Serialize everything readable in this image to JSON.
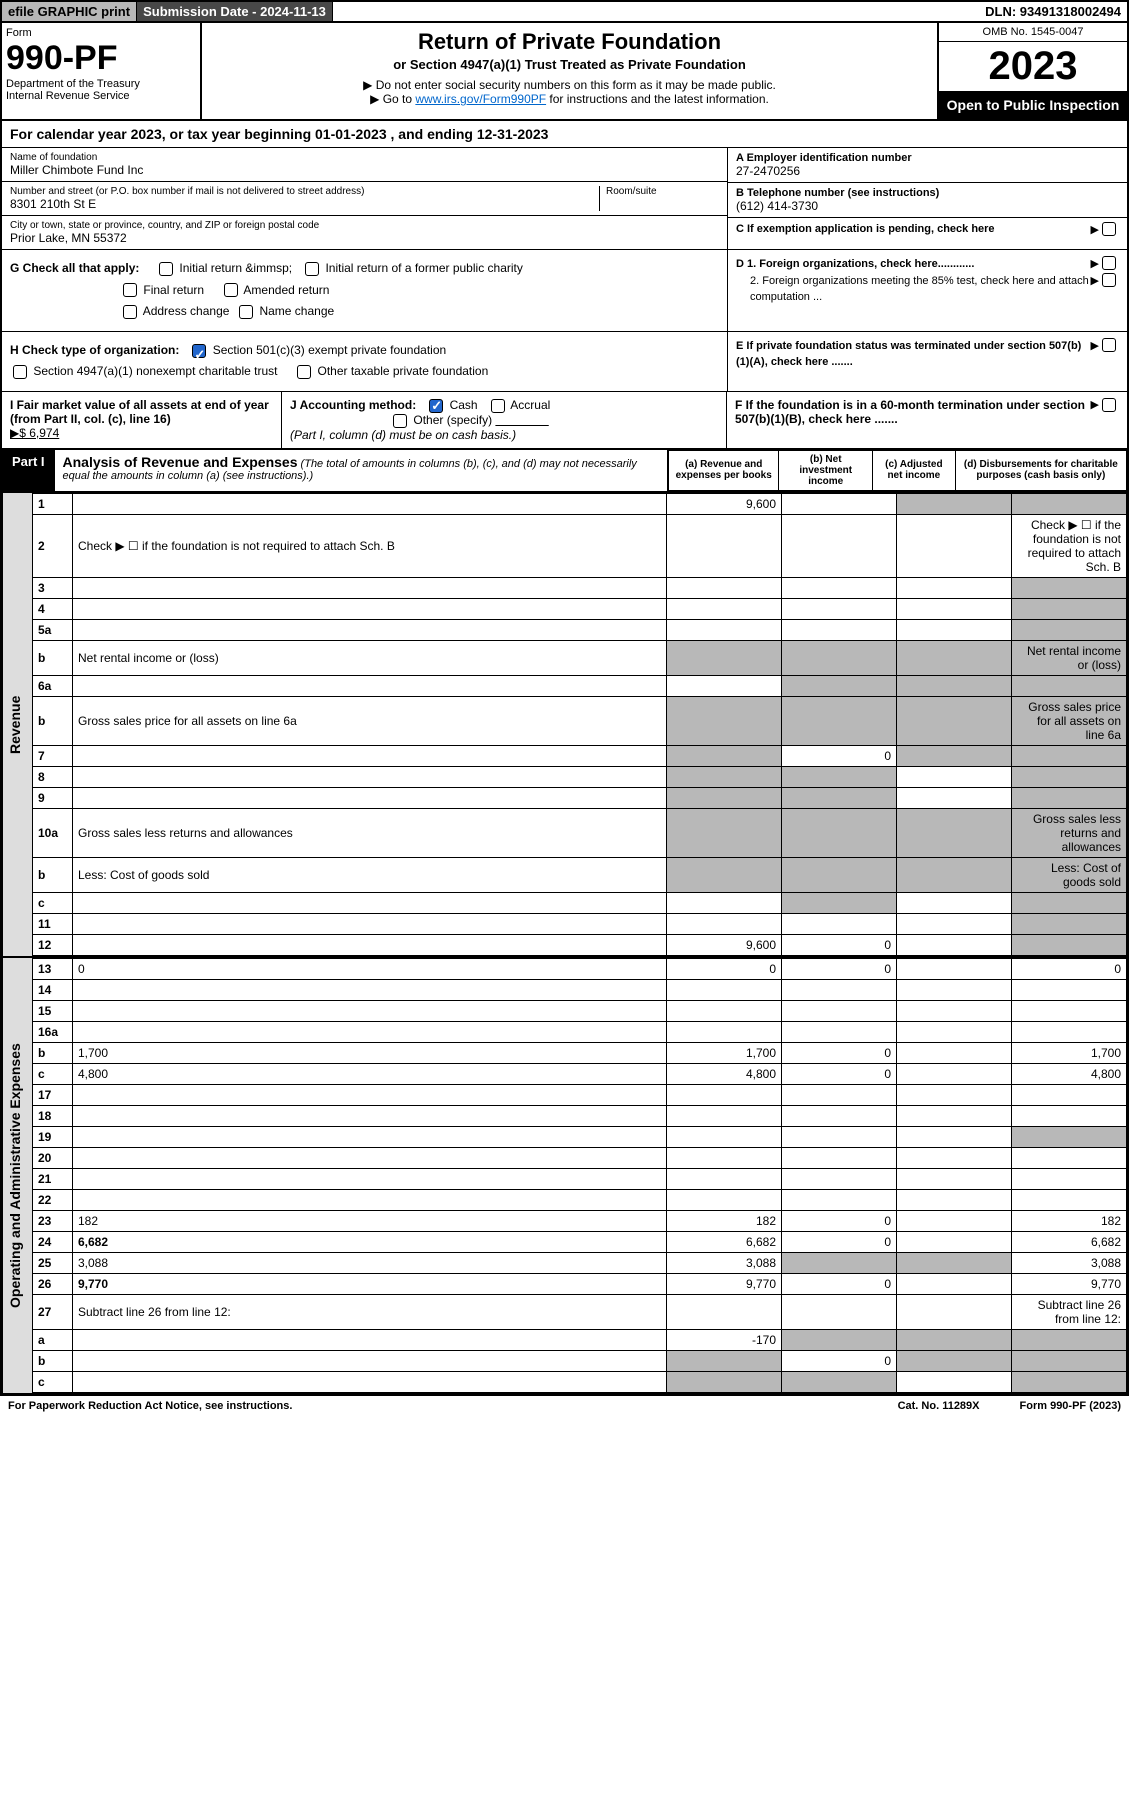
{
  "topbar": {
    "efile": "efile GRAPHIC print",
    "subdate_label": "Submission Date - 2024-11-13",
    "dln": "DLN: 93491318002494"
  },
  "header": {
    "form_word": "Form",
    "form_num": "990-PF",
    "dept": "Department of the Treasury",
    "irs": "Internal Revenue Service",
    "title": "Return of Private Foundation",
    "subtitle": "or Section 4947(a)(1) Trust Treated as Private Foundation",
    "note1": "▶ Do not enter social security numbers on this form as it may be made public.",
    "note2_pre": "▶ Go to ",
    "note2_link": "www.irs.gov/Form990PF",
    "note2_post": " for instructions and the latest information.",
    "omb": "OMB No. 1545-0047",
    "year": "2023",
    "open": "Open to Public Inspection"
  },
  "cal_year": "For calendar year 2023, or tax year beginning 01-01-2023              , and ending 12-31-2023",
  "info": {
    "name_label": "Name of foundation",
    "name": "Miller Chimbote Fund Inc",
    "addr_label": "Number and street (or P.O. box number if mail is not delivered to street address)",
    "room_label": "Room/suite",
    "addr": "8301 210th St E",
    "city_label": "City or town, state or province, country, and ZIP or foreign postal code",
    "city": "Prior Lake, MN  55372",
    "a_label": "A Employer identification number",
    "a_val": "27-2470256",
    "b_label": "B Telephone number (see instructions)",
    "b_val": "(612) 414-3730",
    "c_label": "C If exemption application is pending, check here"
  },
  "checks": {
    "g_label": "G Check all that apply:",
    "g_items": [
      "Initial return",
      "Initial return of a former public charity",
      "Final return",
      "Amended return",
      "Address change",
      "Name change"
    ],
    "h_label": "H Check type of organization:",
    "h1": "Section 501(c)(3) exempt private foundation",
    "h2": "Section 4947(a)(1) nonexempt charitable trust",
    "h3": "Other taxable private foundation",
    "d1": "D 1. Foreign organizations, check here............",
    "d2": "2. Foreign organizations meeting the 85% test, check here and attach computation ...",
    "e": "E  If private foundation status was terminated under section 507(b)(1)(A), check here .......",
    "i_label": "I Fair market value of all assets at end of year (from Part II, col. (c), line 16)",
    "i_val": "▶$  6,974",
    "j_label": "J Accounting method:",
    "j_cash": "Cash",
    "j_accrual": "Accrual",
    "j_other": "Other (specify)",
    "j_note": "(Part I, column (d) must be on cash basis.)",
    "f_label": "F  If the foundation is in a 60-month termination under section 507(b)(1)(B), check here ......."
  },
  "part1": {
    "label": "Part I",
    "title": "Analysis of Revenue and Expenses",
    "title_note": " (The total of amounts in columns (b), (c), and (d) may not necessarily equal the amounts in column (a) (see instructions).)",
    "cols": {
      "a": "(a)  Revenue and expenses per books",
      "b": "(b)  Net investment income",
      "c": "(c)  Adjusted net income",
      "d": "(d)  Disbursements for charitable purposes (cash basis only)"
    }
  },
  "sections": {
    "revenue": "Revenue",
    "expenses": "Operating and Administrative Expenses"
  },
  "rows": [
    {
      "n": "1",
      "d": "",
      "a": "9,600",
      "b": "",
      "c": "",
      "sh": [
        "c",
        "d"
      ]
    },
    {
      "n": "2",
      "d": "Check ▶ ☐ if the foundation is not required to attach Sch. B",
      "group": "none"
    },
    {
      "n": "3",
      "d": "",
      "a": "",
      "b": "",
      "c": "",
      "sh": [
        "d"
      ]
    },
    {
      "n": "4",
      "d": "",
      "a": "",
      "b": "",
      "c": "",
      "sh": [
        "d"
      ]
    },
    {
      "n": "5a",
      "d": "",
      "a": "",
      "b": "",
      "c": "",
      "sh": [
        "d"
      ]
    },
    {
      "n": "b",
      "d": "Net rental income or (loss)",
      "group": "inline",
      "sh": [
        "a",
        "b",
        "c",
        "d"
      ]
    },
    {
      "n": "6a",
      "d": "",
      "a": "",
      "b": "",
      "c": "",
      "sh": [
        "b",
        "c",
        "d"
      ]
    },
    {
      "n": "b",
      "d": "Gross sales price for all assets on line 6a",
      "group": "inline",
      "sh": [
        "a",
        "b",
        "c",
        "d"
      ]
    },
    {
      "n": "7",
      "d": "",
      "a": "",
      "b": "0",
      "c": "",
      "sh": [
        "a",
        "c",
        "d"
      ]
    },
    {
      "n": "8",
      "d": "",
      "a": "",
      "b": "",
      "c": "",
      "sh": [
        "a",
        "b",
        "d"
      ]
    },
    {
      "n": "9",
      "d": "",
      "a": "",
      "b": "",
      "c": "",
      "sh": [
        "a",
        "b",
        "d"
      ]
    },
    {
      "n": "10a",
      "d": "Gross sales less returns and allowances",
      "group": "inline",
      "sh": [
        "a",
        "b",
        "c",
        "d"
      ]
    },
    {
      "n": "b",
      "d": "Less: Cost of goods sold",
      "group": "inline",
      "sh": [
        "a",
        "b",
        "c",
        "d"
      ]
    },
    {
      "n": "c",
      "d": "",
      "a": "",
      "b": "",
      "c": "",
      "sh": [
        "b",
        "d"
      ]
    },
    {
      "n": "11",
      "d": "",
      "a": "",
      "b": "",
      "c": "",
      "sh": [
        "d"
      ]
    },
    {
      "n": "12",
      "d": "",
      "a": "9,600",
      "b": "0",
      "c": "",
      "sh": [
        "d"
      ],
      "bold": true
    }
  ],
  "exp_rows": [
    {
      "n": "13",
      "d": "0",
      "a": "0",
      "b": "0",
      "c": ""
    },
    {
      "n": "14",
      "d": "",
      "a": "",
      "b": "",
      "c": ""
    },
    {
      "n": "15",
      "d": "",
      "a": "",
      "b": "",
      "c": ""
    },
    {
      "n": "16a",
      "d": "",
      "a": "",
      "b": "",
      "c": ""
    },
    {
      "n": "b",
      "d": "1,700",
      "a": "1,700",
      "b": "0",
      "c": ""
    },
    {
      "n": "c",
      "d": "4,800",
      "a": "4,800",
      "b": "0",
      "c": ""
    },
    {
      "n": "17",
      "d": "",
      "a": "",
      "b": "",
      "c": ""
    },
    {
      "n": "18",
      "d": "",
      "a": "",
      "b": "",
      "c": ""
    },
    {
      "n": "19",
      "d": "",
      "a": "",
      "b": "",
      "c": "",
      "sh": [
        "d"
      ]
    },
    {
      "n": "20",
      "d": "",
      "a": "",
      "b": "",
      "c": ""
    },
    {
      "n": "21",
      "d": "",
      "a": "",
      "b": "",
      "c": ""
    },
    {
      "n": "22",
      "d": "",
      "a": "",
      "b": "",
      "c": ""
    },
    {
      "n": "23",
      "d": "182",
      "a": "182",
      "b": "0",
      "c": ""
    },
    {
      "n": "24",
      "d": "6,682",
      "a": "6,682",
      "b": "0",
      "c": "",
      "bold": true
    },
    {
      "n": "25",
      "d": "3,088",
      "a": "3,088",
      "b": "",
      "c": "",
      "sh": [
        "b",
        "c"
      ]
    },
    {
      "n": "26",
      "d": "9,770",
      "a": "9,770",
      "b": "0",
      "c": "",
      "bold": true
    },
    {
      "n": "27",
      "d": "Subtract line 26 from line 12:",
      "group": "hdr"
    },
    {
      "n": "a",
      "d": "",
      "a": "-170",
      "b": "",
      "c": "",
      "sh": [
        "b",
        "c",
        "d"
      ],
      "bold": true
    },
    {
      "n": "b",
      "d": "",
      "a": "",
      "b": "0",
      "c": "",
      "sh": [
        "a",
        "c",
        "d"
      ],
      "bold": true
    },
    {
      "n": "c",
      "d": "",
      "a": "",
      "b": "",
      "c": "",
      "sh": [
        "a",
        "b",
        "d"
      ],
      "bold": true
    }
  ],
  "footer": {
    "left": "For Paperwork Reduction Act Notice, see instructions.",
    "mid": "Cat. No. 11289X",
    "right": "Form 990-PF (2023)"
  },
  "colors": {
    "shade": "#b8b8b8",
    "darkbar": "#484848",
    "link": "#0066cc",
    "check": "#2266cc"
  }
}
